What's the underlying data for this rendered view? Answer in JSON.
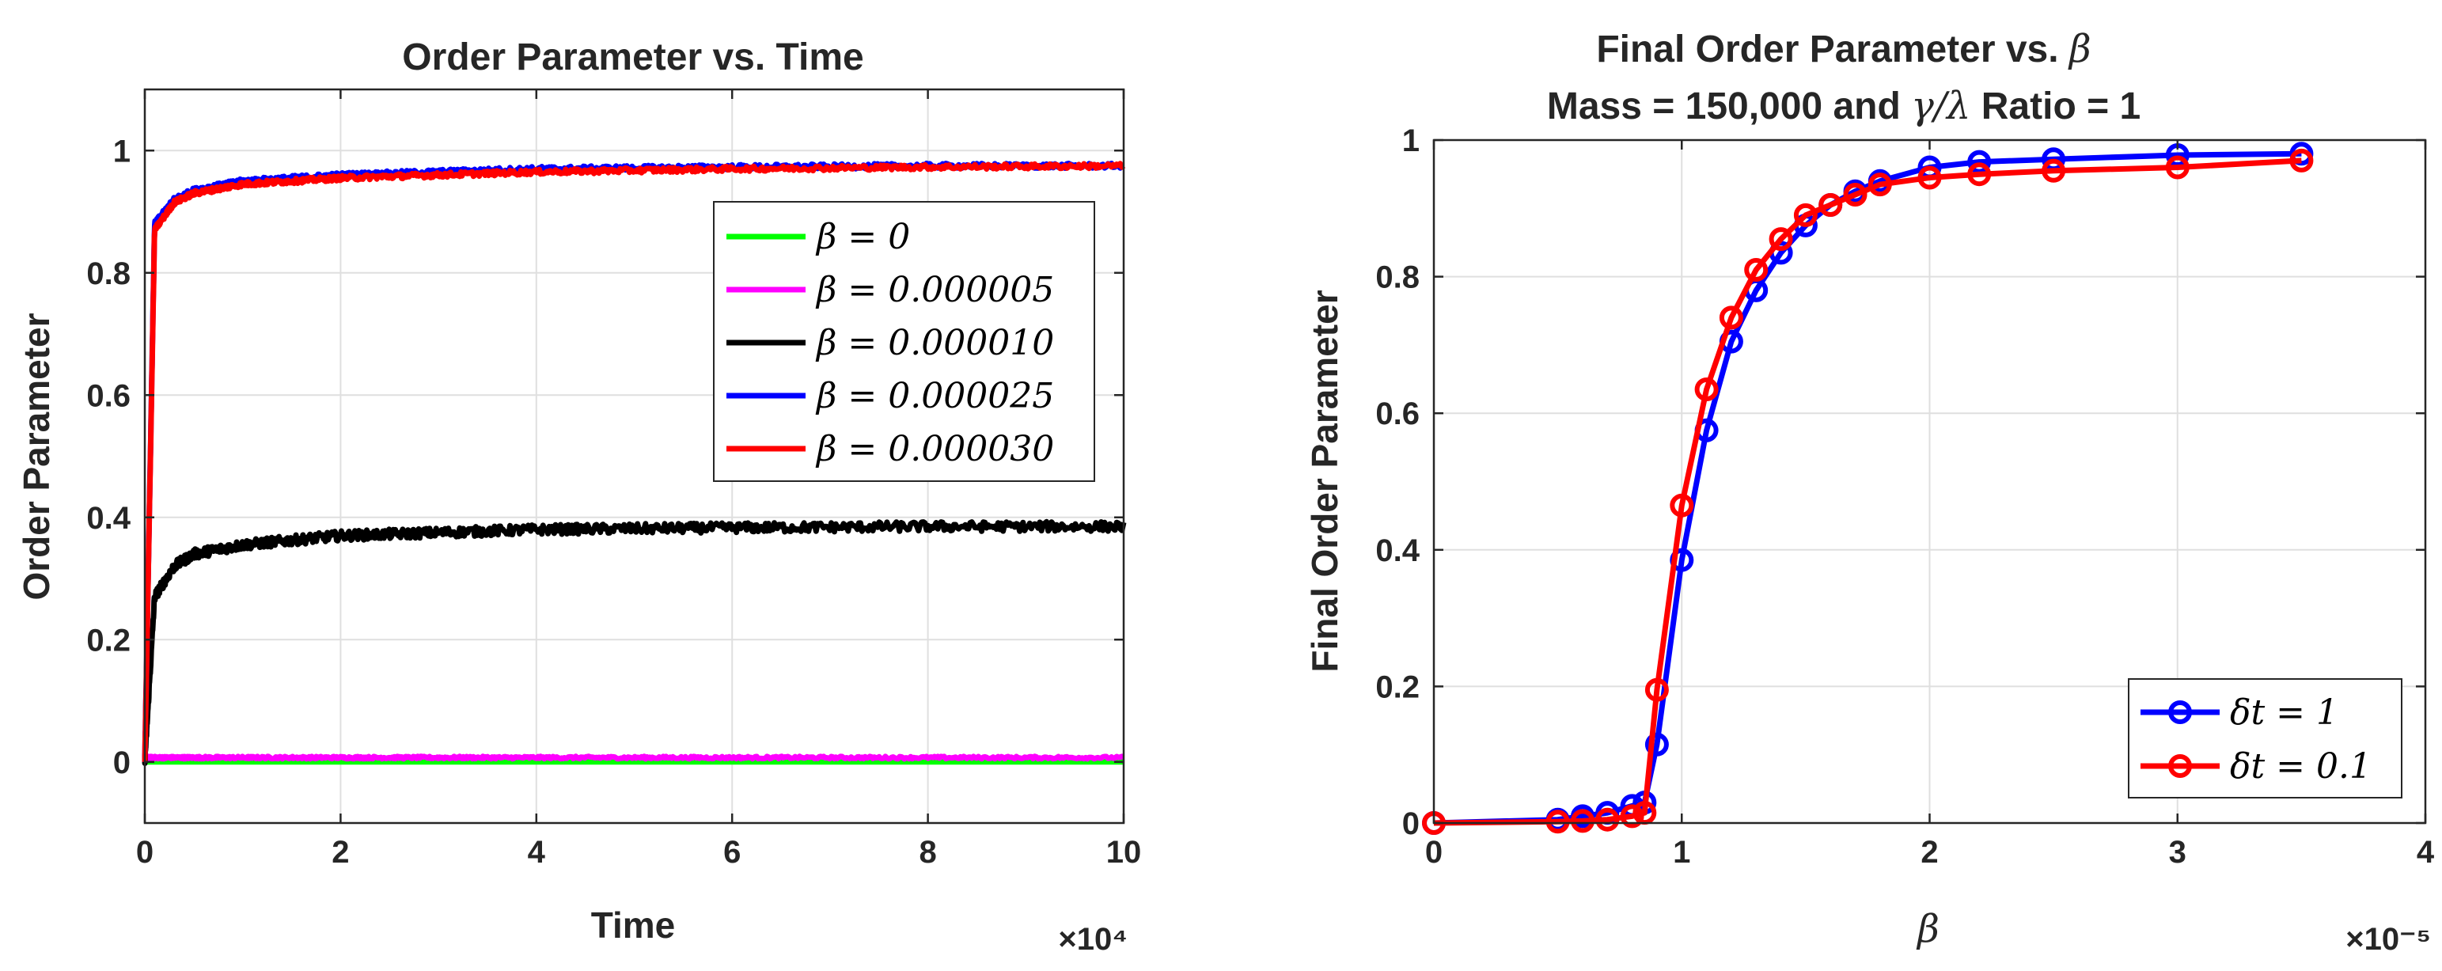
{
  "chart_data": [
    {
      "type": "line",
      "title": "Order Parameter vs. Time",
      "xlabel": "Time",
      "ylabel": "Order Parameter",
      "x_exponent": "×10⁴",
      "xlim": [
        0,
        10
      ],
      "ylim": [
        -0.1,
        1.1
      ],
      "xticks": [
        "0",
        "2",
        "4",
        "6",
        "8",
        "10"
      ],
      "yticks": [
        "0",
        "0.2",
        "0.4",
        "0.6",
        "0.8",
        "1"
      ],
      "legend_position": "upper-right",
      "series": [
        {
          "name": "β = 0",
          "color": "#00ff00",
          "steady": 0.0,
          "rise": 0.0,
          "tau": 0.2,
          "noise": 0.0,
          "x": [
            0,
            0.5,
            2,
            4,
            6,
            8,
            10
          ],
          "y": [
            0,
            0,
            0,
            0,
            0,
            0,
            0
          ]
        },
        {
          "name": "β = 0.000005",
          "color": "#ff00ff",
          "steady": 0.007,
          "rise": 0.0,
          "tau": 0.2,
          "noise": 0.001,
          "x": [
            0,
            0.5,
            2,
            4,
            6,
            8,
            10
          ],
          "y": [
            0.007,
            0.007,
            0.007,
            0.007,
            0.007,
            0.007,
            0.007
          ]
        },
        {
          "name": "β = 0.000010",
          "color": "#000000",
          "steady": 0.385,
          "rise": 0.33,
          "tau": 0.12,
          "noise": 0.004,
          "x": [
            0,
            0.1,
            0.3,
            0.5,
            1,
            2,
            4,
            6,
            8,
            10
          ],
          "y": [
            0,
            0.27,
            0.32,
            0.34,
            0.355,
            0.37,
            0.38,
            0.383,
            0.385,
            0.385
          ]
        },
        {
          "name": "β = 0.000025",
          "color": "#0000ff",
          "steady": 0.975,
          "rise": 0.92,
          "tau": 0.1,
          "noise": 0.002,
          "x": [
            0,
            0.1,
            0.3,
            0.5,
            1,
            2,
            4,
            6,
            8,
            10
          ],
          "y": [
            0,
            0.88,
            0.92,
            0.935,
            0.95,
            0.96,
            0.97,
            0.973,
            0.975,
            0.975
          ]
        },
        {
          "name": "β = 0.000030",
          "color": "#ff0000",
          "steady": 0.975,
          "rise": 0.91,
          "tau": 0.1,
          "noise": 0.002,
          "x": [
            0,
            0.1,
            0.3,
            0.5,
            1,
            2,
            4,
            6,
            8,
            10
          ],
          "y": [
            0,
            0.87,
            0.915,
            0.93,
            0.945,
            0.955,
            0.965,
            0.97,
            0.973,
            0.975
          ]
        }
      ]
    },
    {
      "type": "line",
      "title_line1": "Final Order Parameter vs. ",
      "title_line1_symbol": "β",
      "title_line2_a": "Mass = 150,000 and ",
      "title_line2_symbol": "γ/λ",
      "title_line2_b": " Ratio = 1",
      "xlabel": "β",
      "ylabel": "Final Order Parameter",
      "x_exponent": "×10⁻⁵",
      "xlim": [
        0,
        4
      ],
      "ylim": [
        0,
        1
      ],
      "xticks": [
        "0",
        "1",
        "2",
        "3",
        "4"
      ],
      "yticks": [
        "0",
        "0.2",
        "0.4",
        "0.6",
        "0.8",
        "1"
      ],
      "legend_position": "lower-right",
      "series": [
        {
          "name": "δt = 1",
          "color": "#0000ff",
          "x": [
            0,
            0.5,
            0.6,
            0.7,
            0.8,
            0.85,
            0.9,
            1.0,
            1.1,
            1.2,
            1.3,
            1.4,
            1.5,
            1.6,
            1.7,
            1.8,
            2.0,
            2.2,
            2.5,
            3.0,
            3.5
          ],
          "y": [
            0,
            0.005,
            0.01,
            0.015,
            0.025,
            0.03,
            0.115,
            0.385,
            0.575,
            0.705,
            0.78,
            0.835,
            0.875,
            0.905,
            0.925,
            0.94,
            0.96,
            0.968,
            0.972,
            0.978,
            0.98
          ]
        },
        {
          "name": "δt = 0.1",
          "color": "#ff0000",
          "x": [
            0,
            0.5,
            0.6,
            0.7,
            0.8,
            0.85,
            0.9,
            1.0,
            1.1,
            1.2,
            1.3,
            1.4,
            1.5,
            1.6,
            1.7,
            1.8,
            2.0,
            2.2,
            2.5,
            3.0,
            3.5
          ],
          "y": [
            0,
            0.002,
            0.003,
            0.005,
            0.01,
            0.015,
            0.195,
            0.465,
            0.635,
            0.74,
            0.81,
            0.855,
            0.89,
            0.905,
            0.92,
            0.935,
            0.945,
            0.95,
            0.955,
            0.96,
            0.97
          ]
        }
      ]
    }
  ]
}
